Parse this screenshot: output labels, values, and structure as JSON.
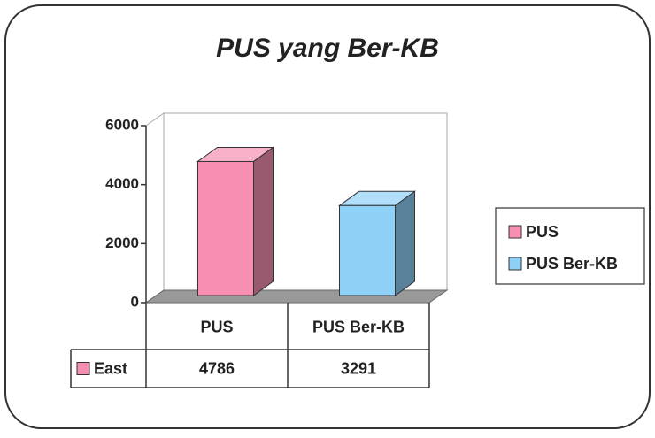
{
  "chart_data": {
    "type": "bar",
    "title": "PUS yang Ber-KB",
    "categories": [
      "PUS",
      "PUS Ber-KB"
    ],
    "colors": [
      "#f78fb3",
      "#8fd0f7"
    ],
    "series": [
      {
        "name": "East",
        "color": "#f78fb3",
        "values": [
          4786,
          3291
        ]
      }
    ],
    "ylim": [
      0,
      6000
    ],
    "yticks": [
      0,
      2000,
      4000,
      6000
    ],
    "legend": "right"
  }
}
